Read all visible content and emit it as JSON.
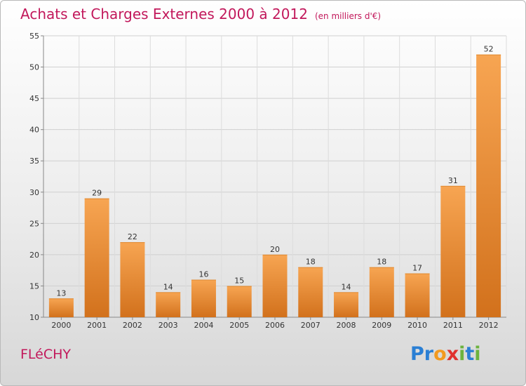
{
  "chart_data": {
    "type": "bar",
    "title": "Achats et Charges Externes 2000 à 2012",
    "unit_label": "(en milliers d'€)",
    "categories": [
      "2000",
      "2001",
      "2002",
      "2003",
      "2004",
      "2005",
      "2006",
      "2007",
      "2008",
      "2009",
      "2010",
      "2011",
      "2012"
    ],
    "values": [
      13,
      29,
      22,
      14,
      16,
      15,
      20,
      18,
      14,
      18,
      17,
      31,
      52
    ],
    "ylim": [
      10,
      55
    ],
    "yticks": [
      10,
      15,
      20,
      25,
      30,
      35,
      40,
      45,
      50,
      55
    ],
    "grid": true,
    "bar_color_light": "#f7a552",
    "bar_color_dark": "#d2711c"
  },
  "place_name": "FLéCHY",
  "logo": {
    "text": "Proxiti",
    "letters": [
      {
        "ch": "P",
        "color": "#2a7fd4"
      },
      {
        "ch": "r",
        "color": "#2a7fd4"
      },
      {
        "ch": "o",
        "color": "#f29a1f"
      },
      {
        "ch": "x",
        "color": "#e0312f"
      },
      {
        "ch": "i",
        "color": "#6cb33f"
      },
      {
        "ch": "t",
        "color": "#2a7fd4"
      },
      {
        "ch": "i",
        "color": "#6cb33f"
      }
    ]
  }
}
